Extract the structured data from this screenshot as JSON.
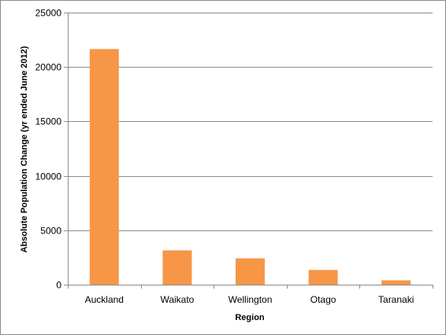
{
  "chart_data": {
    "type": "bar",
    "categories": [
      "Auckland",
      "Waikato",
      "Wellington",
      "Otago",
      "Taranaki"
    ],
    "values": [
      21650,
      3150,
      2420,
      1350,
      400
    ],
    "xlabel": "Region",
    "ylabel": "Absolute Population Change (yr ended June 2012)",
    "ylim": [
      0,
      25000
    ],
    "yticks": [
      0,
      5000,
      10000,
      15000,
      20000,
      25000
    ],
    "grid": true,
    "legend": "none",
    "colors": {
      "bar": "#f79646",
      "grid": "#8c8c8c",
      "axis": "#8c8c8c"
    }
  }
}
